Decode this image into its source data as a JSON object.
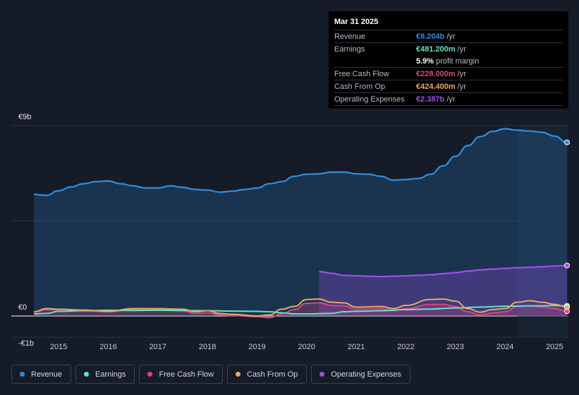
{
  "tooltip": {
    "date": "Mar 31 2025",
    "rows": [
      {
        "label": "Revenue",
        "value": "€8.204b",
        "unit": "/yr",
        "color": "#2d8fe0"
      },
      {
        "label": "Earnings",
        "value": "€481.200m",
        "unit": "/yr",
        "color": "#5ee6c8"
      },
      {
        "label": "",
        "value": "5.9%",
        "unit": "profit margin",
        "color": "#ffffff"
      },
      {
        "label": "Free Cash Flow",
        "value": "€228.000m",
        "unit": "/yr",
        "color": "#d6477f"
      },
      {
        "label": "Cash From Op",
        "value": "€424.400m",
        "unit": "/yr",
        "color": "#e8aa5d"
      },
      {
        "label": "Operating Expenses",
        "value": "€2.387b",
        "unit": "/yr",
        "color": "#a24de8"
      }
    ]
  },
  "legend": [
    {
      "label": "Revenue",
      "color": "#2d8fe0"
    },
    {
      "label": "Earnings",
      "color": "#5ee6c8"
    },
    {
      "label": "Free Cash Flow",
      "color": "#d6477f"
    },
    {
      "label": "Cash From Op",
      "color": "#e8aa5d"
    },
    {
      "label": "Operating Expenses",
      "color": "#a24de8"
    }
  ],
  "chart_data": {
    "type": "area",
    "title": "",
    "xlabel": "",
    "ylabel": "",
    "x_ticks": [
      "2015",
      "2016",
      "2017",
      "2018",
      "2019",
      "2020",
      "2021",
      "2022",
      "2023",
      "2024",
      "2025"
    ],
    "y_ticks": [
      {
        "value": 9,
        "label": "€9b"
      },
      {
        "value": 0,
        "label": "€0"
      },
      {
        "value": -1,
        "label": "-€1b"
      }
    ],
    "ylim": [
      -1,
      9
    ],
    "xlim": [
      2014.5,
      2025.25
    ],
    "highlight_start": 2024.25,
    "units": "€ billions",
    "series": [
      {
        "name": "Revenue",
        "color": "#2d8fe0",
        "fill": true,
        "points": [
          [
            2014.5,
            5.75
          ],
          [
            2014.75,
            5.7
          ],
          [
            2015.0,
            5.92
          ],
          [
            2015.25,
            6.1
          ],
          [
            2015.5,
            6.25
          ],
          [
            2015.75,
            6.35
          ],
          [
            2016.0,
            6.38
          ],
          [
            2016.25,
            6.25
          ],
          [
            2016.5,
            6.15
          ],
          [
            2016.75,
            6.05
          ],
          [
            2017.0,
            6.05
          ],
          [
            2017.25,
            6.15
          ],
          [
            2017.5,
            6.08
          ],
          [
            2017.75,
            5.98
          ],
          [
            2018.0,
            5.95
          ],
          [
            2018.25,
            5.85
          ],
          [
            2018.5,
            5.9
          ],
          [
            2018.75,
            5.98
          ],
          [
            2019.0,
            6.05
          ],
          [
            2019.25,
            6.25
          ],
          [
            2019.5,
            6.35
          ],
          [
            2019.75,
            6.6
          ],
          [
            2020.0,
            6.7
          ],
          [
            2020.25,
            6.72
          ],
          [
            2020.5,
            6.8
          ],
          [
            2020.75,
            6.8
          ],
          [
            2021.0,
            6.72
          ],
          [
            2021.25,
            6.7
          ],
          [
            2021.5,
            6.6
          ],
          [
            2021.75,
            6.42
          ],
          [
            2022.0,
            6.45
          ],
          [
            2022.25,
            6.5
          ],
          [
            2022.5,
            6.7
          ],
          [
            2022.75,
            7.1
          ],
          [
            2023.0,
            7.55
          ],
          [
            2023.25,
            8.05
          ],
          [
            2023.5,
            8.48
          ],
          [
            2023.75,
            8.72
          ],
          [
            2024.0,
            8.85
          ],
          [
            2024.25,
            8.78
          ],
          [
            2024.5,
            8.74
          ],
          [
            2024.75,
            8.68
          ],
          [
            2025.0,
            8.5
          ],
          [
            2025.25,
            8.204
          ]
        ]
      },
      {
        "name": "Operating Expenses",
        "color": "#a24de8",
        "fill": true,
        "points": [
          [
            2020.25,
            2.1
          ],
          [
            2020.5,
            2.02
          ],
          [
            2020.75,
            1.92
          ],
          [
            2021.0,
            1.9
          ],
          [
            2021.25,
            1.88
          ],
          [
            2021.5,
            1.86
          ],
          [
            2021.75,
            1.88
          ],
          [
            2022.0,
            1.9
          ],
          [
            2022.25,
            1.92
          ],
          [
            2022.5,
            1.95
          ],
          [
            2022.75,
            2.0
          ],
          [
            2023.0,
            2.05
          ],
          [
            2023.25,
            2.12
          ],
          [
            2023.5,
            2.18
          ],
          [
            2023.75,
            2.22
          ],
          [
            2024.0,
            2.25
          ],
          [
            2024.25,
            2.28
          ],
          [
            2024.5,
            2.3
          ],
          [
            2024.75,
            2.33
          ],
          [
            2025.0,
            2.36
          ],
          [
            2025.25,
            2.387
          ]
        ]
      },
      {
        "name": "Earnings",
        "color": "#5ee6c8",
        "fill": false,
        "points": [
          [
            2014.5,
            0.1
          ],
          [
            2014.75,
            0.12
          ],
          [
            2015.0,
            0.22
          ],
          [
            2015.5,
            0.25
          ],
          [
            2016.0,
            0.27
          ],
          [
            2016.5,
            0.26
          ],
          [
            2017.0,
            0.27
          ],
          [
            2017.5,
            0.26
          ],
          [
            2018.0,
            0.25
          ],
          [
            2018.5,
            0.23
          ],
          [
            2019.0,
            0.22
          ],
          [
            2019.25,
            0.2
          ],
          [
            2019.5,
            0.15
          ],
          [
            2019.75,
            0.1
          ],
          [
            2020.0,
            0.1
          ],
          [
            2020.5,
            0.12
          ],
          [
            2020.75,
            0.2
          ],
          [
            2021.0,
            0.22
          ],
          [
            2021.5,
            0.25
          ],
          [
            2022.0,
            0.3
          ],
          [
            2022.5,
            0.33
          ],
          [
            2023.0,
            0.38
          ],
          [
            2023.5,
            0.42
          ],
          [
            2024.0,
            0.46
          ],
          [
            2024.5,
            0.48
          ],
          [
            2025.0,
            0.49
          ],
          [
            2025.25,
            0.4812
          ]
        ]
      },
      {
        "name": "Free Cash Flow",
        "color": "#d6477f",
        "fill": true,
        "points": [
          [
            2014.5,
            0.18
          ],
          [
            2014.75,
            0.3
          ],
          [
            2015.0,
            0.3
          ],
          [
            2015.5,
            0.25
          ],
          [
            2016.0,
            0.2
          ],
          [
            2016.5,
            0.3
          ],
          [
            2017.0,
            0.3
          ],
          [
            2017.5,
            0.25
          ],
          [
            2017.75,
            0.12
          ],
          [
            2018.0,
            0.15
          ],
          [
            2018.25,
            0.05
          ],
          [
            2018.5,
            0.02
          ],
          [
            2019.0,
            -0.03
          ],
          [
            2019.25,
            -0.08
          ],
          [
            2019.5,
            0.1
          ],
          [
            2019.75,
            0.3
          ],
          [
            2020.0,
            0.6
          ],
          [
            2020.25,
            0.62
          ],
          [
            2020.5,
            0.5
          ],
          [
            2020.75,
            0.48
          ],
          [
            2021.0,
            0.32
          ],
          [
            2021.5,
            0.35
          ],
          [
            2021.75,
            0.25
          ],
          [
            2022.0,
            0.35
          ],
          [
            2022.5,
            0.55
          ],
          [
            2022.75,
            0.55
          ],
          [
            2023.0,
            0.45
          ],
          [
            2023.25,
            0.2
          ],
          [
            2023.5,
            0.05
          ],
          [
            2023.75,
            0.15
          ],
          [
            2024.0,
            0.2
          ],
          [
            2024.25,
            0.45
          ],
          [
            2024.5,
            0.48
          ],
          [
            2024.75,
            0.42
          ],
          [
            2025.0,
            0.35
          ],
          [
            2025.25,
            0.228
          ]
        ]
      },
      {
        "name": "Cash From Op",
        "color": "#e8aa5d",
        "fill": false,
        "points": [
          [
            2014.5,
            0.2
          ],
          [
            2014.75,
            0.35
          ],
          [
            2015.0,
            0.32
          ],
          [
            2015.5,
            0.28
          ],
          [
            2016.0,
            0.22
          ],
          [
            2016.5,
            0.35
          ],
          [
            2017.0,
            0.35
          ],
          [
            2017.5,
            0.32
          ],
          [
            2017.75,
            0.2
          ],
          [
            2018.0,
            0.25
          ],
          [
            2018.25,
            0.12
          ],
          [
            2018.5,
            0.08
          ],
          [
            2019.0,
            0.0
          ],
          [
            2019.25,
            0.05
          ],
          [
            2019.5,
            0.32
          ],
          [
            2019.75,
            0.45
          ],
          [
            2020.0,
            0.78
          ],
          [
            2020.25,
            0.8
          ],
          [
            2020.5,
            0.65
          ],
          [
            2020.75,
            0.62
          ],
          [
            2021.0,
            0.42
          ],
          [
            2021.5,
            0.45
          ],
          [
            2021.75,
            0.35
          ],
          [
            2022.0,
            0.5
          ],
          [
            2022.5,
            0.78
          ],
          [
            2022.75,
            0.8
          ],
          [
            2023.0,
            0.7
          ],
          [
            2023.25,
            0.35
          ],
          [
            2023.5,
            0.18
          ],
          [
            2023.75,
            0.3
          ],
          [
            2024.0,
            0.35
          ],
          [
            2024.25,
            0.65
          ],
          [
            2024.5,
            0.72
          ],
          [
            2024.75,
            0.65
          ],
          [
            2025.0,
            0.55
          ],
          [
            2025.25,
            0.4244
          ]
        ]
      }
    ]
  }
}
